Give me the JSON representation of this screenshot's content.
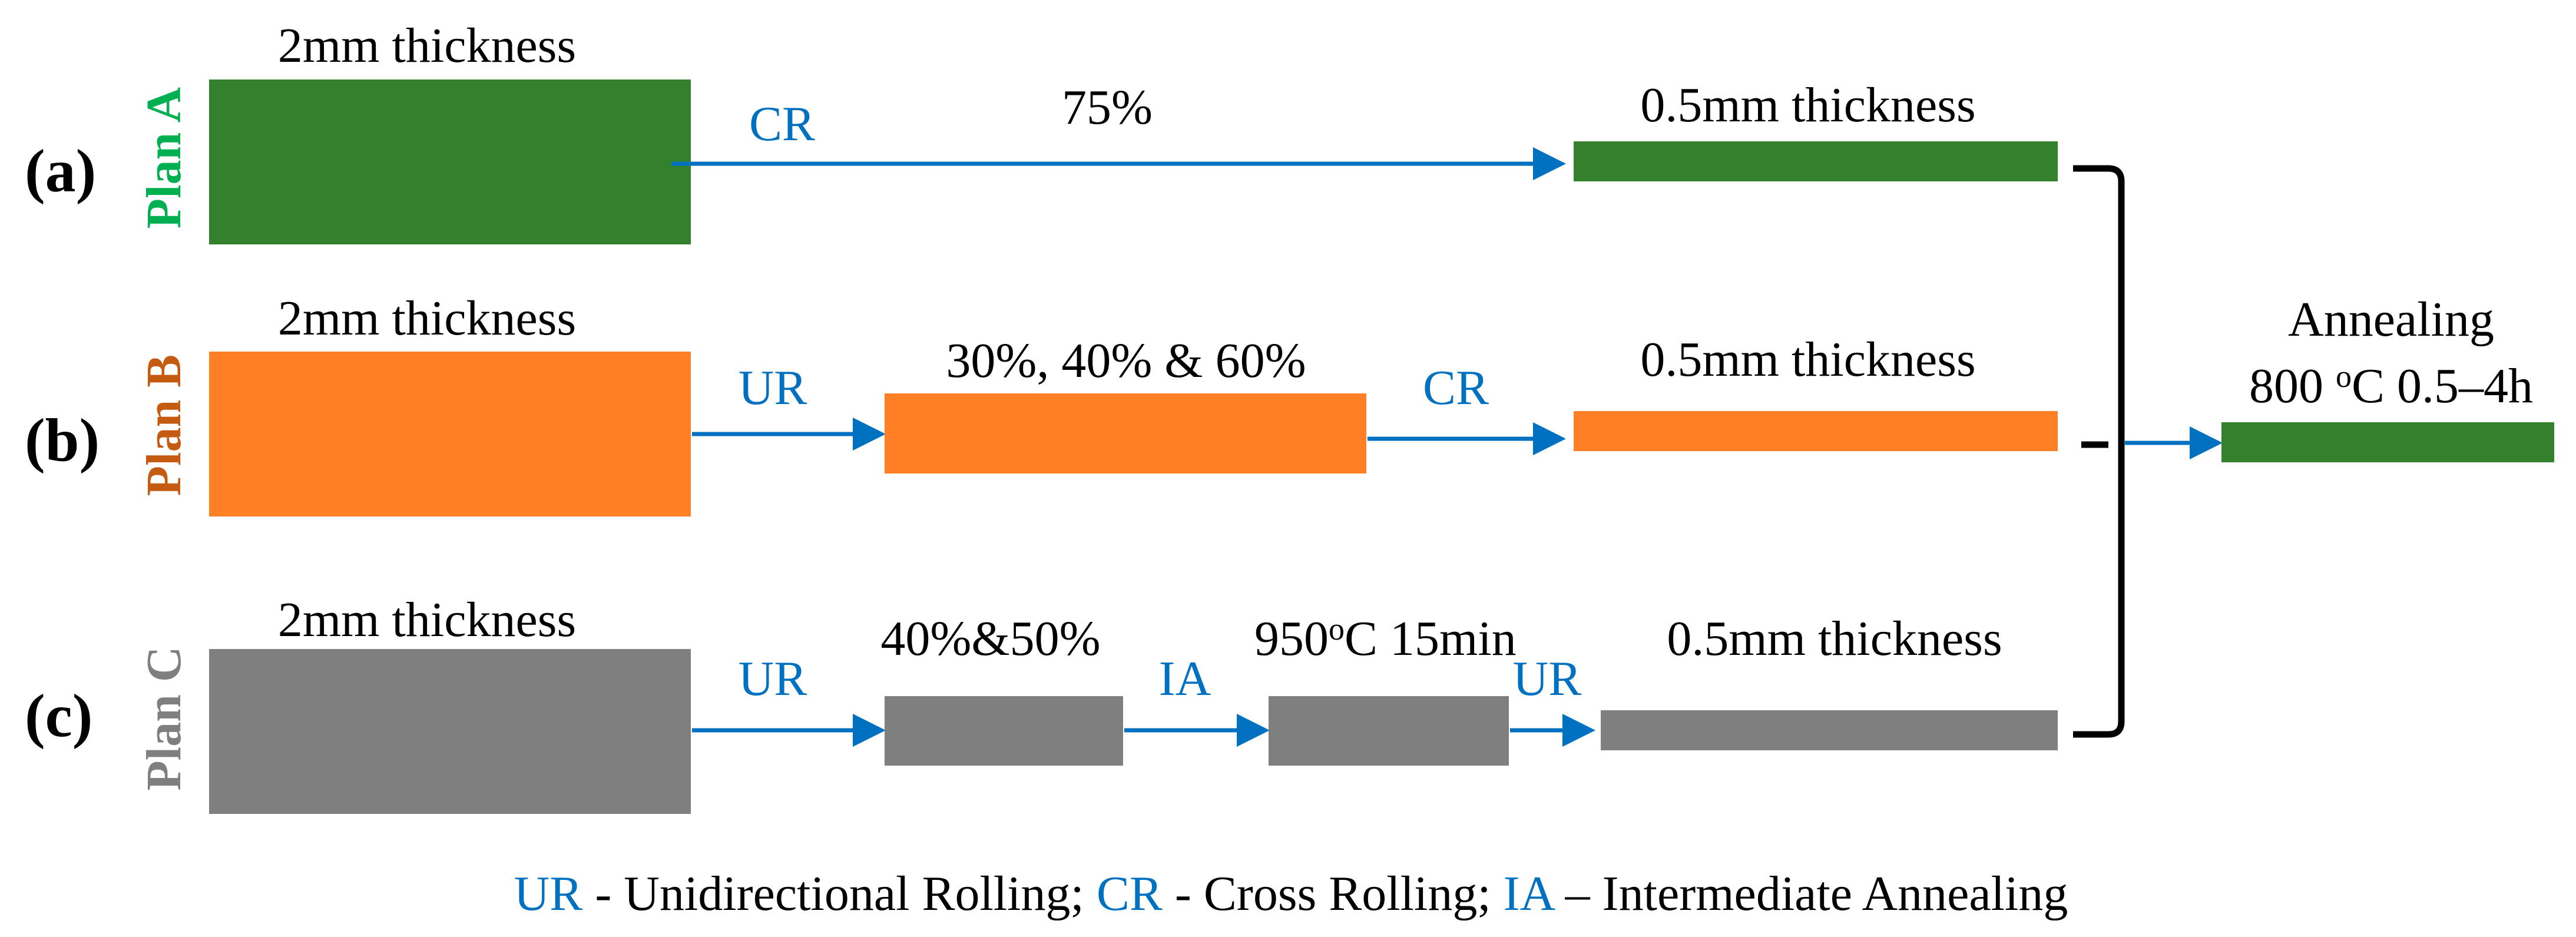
{
  "colors": {
    "plan_a": "#33802d",
    "plan_b": "#ff7f27",
    "plan_c": "#7f7f7f",
    "plan_a_text": "#00b050",
    "plan_b_text": "#c55a11",
    "plan_c_text": "#7f7f7f",
    "process_text": "#0070c0",
    "arrow": "#0070c0"
  },
  "rows": {
    "a": {
      "panel": "(a)",
      "plan": "Plan A",
      "start_thickness": "2mm thickness",
      "process": "CR",
      "reduction": "75%",
      "final_thickness": "0.5mm thickness"
    },
    "b": {
      "panel": "(b)",
      "plan": "Plan B",
      "start_thickness": "2mm thickness",
      "process_1": "UR",
      "reduction": "30%, 40% & 60%",
      "process_2": "CR",
      "final_thickness": "0.5mm thickness"
    },
    "c": {
      "panel": "(c)",
      "plan": "Plan C",
      "start_thickness": "2mm thickness",
      "process_1": "UR",
      "reduction": "40%&50%",
      "process_2": "IA",
      "ia_temp": "950",
      "ia_unit_sup": "o",
      "ia_unit": "C 15min",
      "process_3": "UR",
      "final_thickness": "0.5mm thickness"
    }
  },
  "annealing": {
    "title": "Annealing",
    "temp": "800 ",
    "unit_sup": "o",
    "conditions": "C 0.5–4h"
  },
  "legend": {
    "ur_abbr": "UR",
    "ur_text": " - Unidirectional Rolling; ",
    "cr_abbr": "CR",
    "cr_text": " - Cross Rolling; ",
    "ia_abbr": "IA",
    "ia_text": " – Intermediate Annealing"
  }
}
